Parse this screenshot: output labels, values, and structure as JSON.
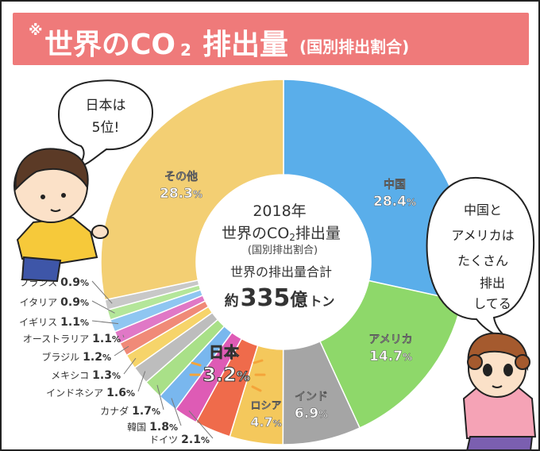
{
  "header": {
    "note_mark": "※",
    "title_main": "世界のCO",
    "title_sub": "2",
    "title_tail": "排出量",
    "title_paren": "(国別排出割合)"
  },
  "center": {
    "year": "2018年",
    "line1": "世界のCO",
    "line1_sub": "2",
    "line1_tail": "排出量",
    "line2": "(国別排出割合)",
    "total_label": "世界の排出量合計",
    "total_prefix": "約",
    "total_value": "335",
    "total_unit1": "億",
    "total_unit2": "トン"
  },
  "bubbles": {
    "left": [
      "日本は",
      "5位!"
    ],
    "right": [
      "中国と",
      "アメリカは",
      "たくさん",
      "排出",
      "してる"
    ]
  },
  "chart_data": {
    "type": "pie",
    "style": "donut",
    "title": "世界のCO2排出量(国別排出割合)",
    "subtitle": "2018年",
    "unit": "%",
    "slices": [
      {
        "label": "中国",
        "value": 28.4,
        "value_text": "28.4",
        "color": "#5aaeea"
      },
      {
        "label": "アメリカ",
        "value": 14.7,
        "value_text": "14.7",
        "color": "#8ed86a"
      },
      {
        "label": "インド",
        "value": 6.9,
        "value_text": "6.9",
        "color": "#a5a5a5"
      },
      {
        "label": "ロシア",
        "value": 4.7,
        "value_text": "4.7",
        "color": "#f4c85c"
      },
      {
        "label": "日本",
        "value": 3.2,
        "value_text": "3.2",
        "color": "#ef6b4b"
      },
      {
        "label": "ドイツ",
        "value": 2.1,
        "value_text": "2.1",
        "color": "#de5bb5"
      },
      {
        "label": "韓国",
        "value": 1.8,
        "value_text": "1.8",
        "color": "#79b7ee"
      },
      {
        "label": "カナダ",
        "value": 1.7,
        "value_text": "1.7",
        "color": "#a9e088"
      },
      {
        "label": "インドネシア",
        "value": 1.6,
        "value_text": "1.6",
        "color": "#bdbdbd"
      },
      {
        "label": "メキシコ",
        "value": 1.3,
        "value_text": "1.3",
        "color": "#f6d46a"
      },
      {
        "label": "ブラジル",
        "value": 1.2,
        "value_text": "1.2",
        "color": "#f08a78"
      },
      {
        "label": "オーストラリア",
        "value": 1.1,
        "value_text": "1.1",
        "color": "#e078c6"
      },
      {
        "label": "イギリス",
        "value": 1.1,
        "value_text": "1.1",
        "color": "#8fc6f1"
      },
      {
        "label": "イタリア",
        "value": 0.9,
        "value_text": "0.9",
        "color": "#b4e69a"
      },
      {
        "label": "フランス",
        "value": 0.9,
        "value_text": "0.9",
        "color": "#c8c8c8"
      },
      {
        "label": "その他",
        "value": 28.3,
        "value_text": "28.3",
        "color": "#f3cf73"
      }
    ]
  }
}
